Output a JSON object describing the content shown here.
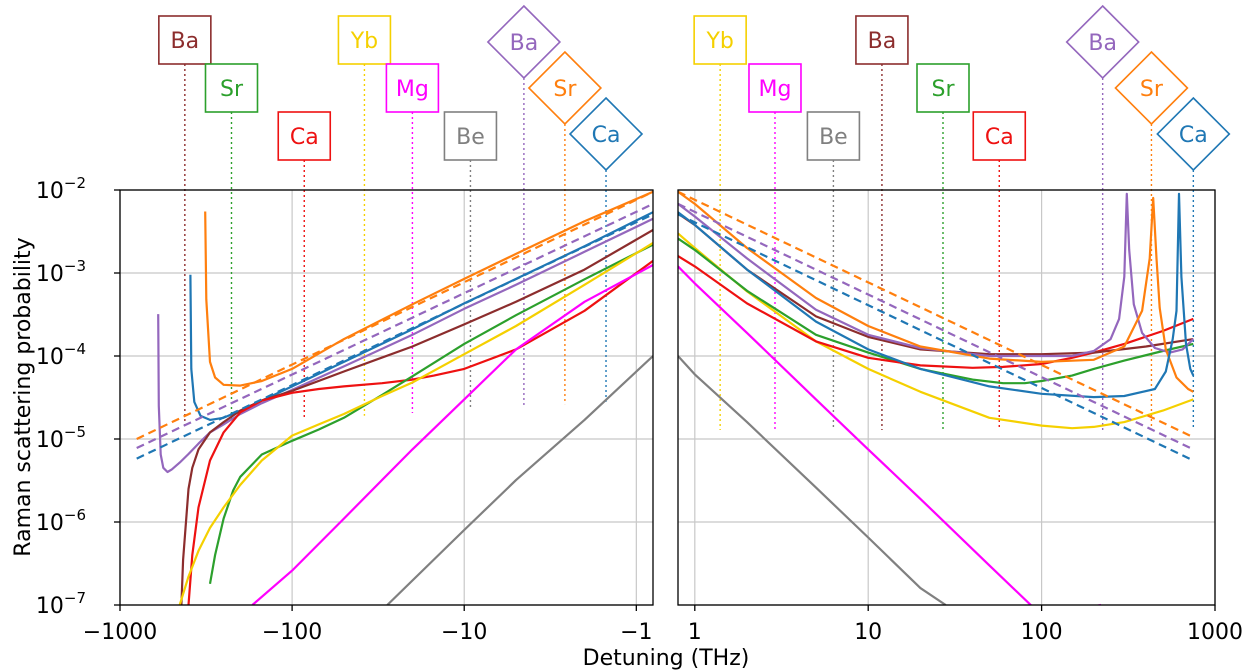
{
  "chart_data": {
    "type": "line",
    "xlabel": "Detuning (THz)",
    "ylabel": "Raman scattering probability",
    "yscale": "log",
    "ylim": [
      1e-07,
      0.01
    ],
    "y_ticks": [
      {
        "value": 0.01,
        "base": "10",
        "exp": "−2"
      },
      {
        "value": 0.001,
        "base": "10",
        "exp": "−3"
      },
      {
        "value": 0.0001,
        "base": "10",
        "exp": "−4"
      },
      {
        "value": 1e-05,
        "base": "10",
        "exp": "−5"
      },
      {
        "value": 1e-06,
        "base": "10",
        "exp": "−6"
      },
      {
        "value": 1e-07,
        "base": "10",
        "exp": "−7"
      }
    ],
    "grid": true,
    "colors": {
      "Ba": "#8c2d2d",
      "Ba_ion": "#9467bd",
      "Sr": "#2ca02c",
      "Sr_ion": "#ff7f0e",
      "Ca": "#ee1111",
      "Ca_ion": "#1f77b4",
      "Yb": "#f5d000",
      "Mg": "#ff00ff",
      "Be": "#808080"
    },
    "panels": [
      {
        "side": "left",
        "xscale": "symlog-negative",
        "xlim": [
          -1000,
          -0.8
        ],
        "x_ticks": [
          {
            "value": -1000,
            "label": "−1000"
          },
          {
            "value": -100,
            "label": "−100"
          },
          {
            "value": -10,
            "label": "−10"
          },
          {
            "value": -1,
            "label": "−1"
          }
        ],
        "markers": [
          {
            "element": "Ba",
            "x": -420,
            "shape": "square",
            "color": "#8c2d2d"
          },
          {
            "element": "Sr",
            "x": -225,
            "shape": "square",
            "color": "#2ca02c"
          },
          {
            "element": "Ca",
            "x": -85,
            "shape": "square",
            "color": "#ee1111"
          },
          {
            "element": "Yb",
            "x": -38,
            "shape": "square",
            "color": "#f5d000"
          },
          {
            "element": "Mg",
            "x": -20,
            "shape": "square",
            "color": "#ff00ff"
          },
          {
            "element": "Be",
            "x": -9.2,
            "shape": "square",
            "color": "#808080"
          },
          {
            "element": "Ba",
            "x": -4.5,
            "shape": "diamond",
            "color": "#9467bd"
          },
          {
            "element": "Sr",
            "x": -2.6,
            "shape": "diamond",
            "color": "#ff7f0e"
          },
          {
            "element": "Ca",
            "x": -1.5,
            "shape": "diamond",
            "color": "#1f77b4"
          }
        ],
        "series": [
          {
            "key": "Sr_ion",
            "style": "solid",
            "x": [
              -320,
              -315,
              -300,
              -280,
              -250,
              -200,
              -150,
              -100,
              -50,
              -20,
              -10,
              -5,
              -2,
              -0.8
            ],
            "y": [
              0.0055,
              0.00048,
              8.5e-05,
              5.5e-05,
              4.5e-05,
              4.4e-05,
              5e-05,
              7e-05,
              0.00016,
              0.00042,
              0.00085,
              0.0017,
              0.0042,
              0.0095
            ]
          },
          {
            "key": "Ca_ion",
            "style": "solid",
            "x": [
              -390,
              -385,
              -370,
              -340,
              -300,
              -250,
              -200,
              -150,
              -100,
              -50,
              -20,
              -10,
              -5,
              -2,
              -0.8
            ],
            "y": [
              0.00095,
              7e-05,
              2.8e-05,
              1.9e-05,
              1.7e-05,
              1.8e-05,
              2.2e-05,
              2.9e-05,
              4.3e-05,
              8.5e-05,
              0.00021,
              0.00043,
              0.00085,
              0.0021,
              0.0054
            ]
          },
          {
            "key": "Ba_ion",
            "style": "solid",
            "x": [
              -600,
              -595,
              -580,
              -560,
              -530,
              -500,
              -450,
              -400,
              -350,
              -300,
              -250,
              -200,
              -150,
              -100,
              -50,
              -20,
              -10,
              -5,
              -2,
              -0.8
            ],
            "y": [
              0.00032,
              2.5e-05,
              6.5e-06,
              4.5e-06,
              4e-06,
              4.3e-06,
              5.2e-06,
              6.6e-06,
              8.8e-06,
              1.2e-05,
              1.5e-05,
              2e-05,
              2.7e-05,
              3.9e-05,
              7.5e-05,
              0.00018,
              0.00037,
              0.00072,
              0.0018,
              0.0045
            ]
          },
          {
            "key": "Ba",
            "style": "solid",
            "x": [
              -440,
              -430,
              -400,
              -380,
              -350,
              -300,
              -250,
              -200,
              -150,
              -100,
              -50,
              -20,
              -10,
              -5,
              -2,
              -0.8
            ],
            "y": [
              1e-07,
              3.5e-07,
              2.5e-06,
              4.5e-06,
              7.5e-06,
              1.2e-05,
              1.6e-05,
              2.2e-05,
              2.9e-05,
              3.8e-05,
              6.5e-05,
              0.00013,
              0.00024,
              0.00045,
              0.0011,
              0.0033
            ]
          },
          {
            "key": "Ca",
            "style": "solid",
            "x": [
              -400,
              -380,
              -350,
              -300,
              -250,
              -200,
              -150,
              -100,
              -70,
              -50,
              -30,
              -20,
              -15,
              -10,
              -5,
              -2,
              -0.8
            ],
            "y": [
              1e-07,
              4e-07,
              1.5e-06,
              5.5e-06,
              1.2e-05,
              2.1e-05,
              2.9e-05,
              3.6e-05,
              4e-05,
              4.3e-05,
              4.7e-05,
              5.2e-05,
              5.8e-05,
              7e-05,
              0.00012,
              0.00035,
              0.0014
            ]
          },
          {
            "key": "Sr",
            "style": "solid",
            "x": [
              -300,
              -280,
              -250,
              -220,
              -200,
              -150,
              -100,
              -70,
              -50,
              -30,
              -20,
              -10,
              -5,
              -2,
              -0.8
            ],
            "y": [
              1.8e-07,
              4e-07,
              1.1e-06,
              2.4e-06,
              3.5e-06,
              6.5e-06,
              9.5e-06,
              1.3e-05,
              1.8e-05,
              3.4e-05,
              5.7e-05,
              0.00014,
              0.00031,
              0.00084,
              0.0022
            ]
          },
          {
            "key": "Yb",
            "style": "solid",
            "x": [
              -450,
              -400,
              -350,
              -300,
              -250,
              -200,
              -150,
              -100,
              -70,
              -50,
              -30,
              -20,
              -10,
              -5,
              -2,
              -0.8
            ],
            "y": [
              1e-07,
              2.2e-07,
              4.5e-07,
              8.5e-07,
              1.5e-06,
              2.8e-06,
              5.5e-06,
              1.1e-05,
              1.5e-05,
              2e-05,
              3.3e-05,
              4.8e-05,
              0.000105,
              0.00023,
              0.00072,
              0.0023
            ]
          },
          {
            "key": "Mg",
            "style": "solid",
            "x": [
              -170,
              -100,
              -50,
              -20,
              -10,
              -5,
              -2,
              -0.8
            ],
            "y": [
              1e-07,
              2.6e-07,
              1.1e-06,
              7.5e-06,
              3e-05,
              0.00012,
              0.00045,
              0.00125
            ]
          },
          {
            "key": "Be",
            "style": "solid",
            "x": [
              -28,
              -10,
              -5,
              -2,
              -0.8
            ],
            "y": [
              1e-07,
              8e-07,
              3.2e-06,
              1.7e-05,
              0.0001
            ]
          },
          {
            "key": "Sr_ion",
            "style": "dashed",
            "x": [
              -800,
              -0.8
            ],
            "y": [
              1e-05,
              0.0095
            ]
          },
          {
            "key": "Ba_ion",
            "style": "dashed",
            "x": [
              -800,
              -0.8
            ],
            "y": [
              7.8e-06,
              0.0068
            ]
          },
          {
            "key": "Ca_ion",
            "style": "dashed",
            "x": [
              -800,
              -0.8
            ],
            "y": [
              5.8e-06,
              0.0051
            ]
          }
        ]
      },
      {
        "side": "right",
        "xscale": "log",
        "xlim": [
          0.8,
          1000
        ],
        "x_ticks": [
          {
            "value": 1,
            "label": "1"
          },
          {
            "value": 10,
            "label": "10"
          },
          {
            "value": 100,
            "label": "100"
          },
          {
            "value": 1000,
            "label": "1000"
          }
        ],
        "markers": [
          {
            "element": "Yb",
            "x": 1.4,
            "shape": "square",
            "color": "#f5d000"
          },
          {
            "element": "Mg",
            "x": 2.9,
            "shape": "square",
            "color": "#ff00ff"
          },
          {
            "element": "Be",
            "x": 6.3,
            "shape": "square",
            "color": "#808080"
          },
          {
            "element": "Ba",
            "x": 12,
            "shape": "square",
            "color": "#8c2d2d"
          },
          {
            "element": "Sr",
            "x": 27,
            "shape": "square",
            "color": "#2ca02c"
          },
          {
            "element": "Ca",
            "x": 57,
            "shape": "square",
            "color": "#ee1111"
          },
          {
            "element": "Ba",
            "x": 225,
            "shape": "diamond",
            "color": "#9467bd"
          },
          {
            "element": "Sr",
            "x": 430,
            "shape": "diamond",
            "color": "#ff7f0e"
          },
          {
            "element": "Ca",
            "x": 750,
            "shape": "diamond",
            "color": "#1f77b4"
          }
        ],
        "series": [
          {
            "key": "Mg",
            "style": "solid",
            "x": [
              0.8,
              1,
              2,
              5,
              10,
              20,
              50,
              100,
              220
            ],
            "y": [
              0.0012,
              0.00075,
              0.00019,
              3e-05,
              7.5e-06,
              1.9e-06,
              3e-07,
              7.5e-08,
              1e-07
            ]
          },
          {
            "key": "Be",
            "style": "solid",
            "x": [
              0.8,
              1,
              2,
              5,
              10,
              20,
              28
            ],
            "y": [
              0.0001,
              6e-05,
              1.6e-05,
              2.6e-06,
              6.5e-07,
              1.6e-07,
              1e-07
            ]
          },
          {
            "key": "Yb",
            "style": "solid",
            "x": [
              0.8,
              1,
              2,
              5,
              10,
              20,
              50,
              100,
              150,
              200,
              300,
              500,
              750
            ],
            "y": [
              0.003,
              0.002,
              0.0006,
              0.00015,
              7e-05,
              3.7e-05,
              1.8e-05,
              1.45e-05,
              1.35e-05,
              1.4e-05,
              1.6e-05,
              2.2e-05,
              3e-05
            ]
          },
          {
            "key": "Sr",
            "style": "solid",
            "x": [
              0.8,
              1,
              2,
              5,
              10,
              20,
              40,
              60,
              80,
              100,
              150,
              200,
              300,
              500,
              750
            ],
            "y": [
              0.0026,
              0.0019,
              0.00061,
              0.00018,
              0.00011,
              7e-05,
              5.2e-05,
              4.7e-05,
              4.7e-05,
              5e-05,
              5.8e-05,
              7e-05,
              8.8e-05,
              0.000115,
              0.00014
            ]
          },
          {
            "key": "Ca",
            "style": "solid",
            "x": [
              0.8,
              1,
              2,
              5,
              10,
              20,
              40,
              60,
              100,
              150,
              200,
              300,
              500,
              750
            ],
            "y": [
              0.0016,
              0.0012,
              0.00043,
              0.00015,
              9.5e-05,
              7.7e-05,
              7.2e-05,
              7.4e-05,
              8e-05,
              9.5e-05,
              0.00011,
              0.00014,
              0.0002,
              0.00028
            ]
          },
          {
            "key": "Ba",
            "style": "solid",
            "x": [
              0.8,
              1,
              2,
              5,
              10,
              20,
              50,
              100,
              200,
              400,
              750
            ],
            "y": [
              0.0052,
              0.0038,
              0.0011,
              0.0003,
              0.00017,
              0.00012,
              0.000105,
              0.000105,
              0.00011,
              0.00013,
              0.00016
            ]
          },
          {
            "key": "Ba_ion",
            "style": "solid",
            "x": [
              0.8,
              1,
              2,
              5,
              10,
              20,
              50,
              100,
              150,
              200,
              250,
              280,
              300,
              310,
              320,
              340,
              380,
              450,
              550,
              650,
              750
            ],
            "y": [
              0.0068,
              0.0048,
              0.0015,
              0.00036,
              0.00018,
              0.000125,
              0.0001,
              0.0001,
              0.0001,
              0.000115,
              0.00016,
              0.00028,
              0.0009,
              0.009,
              0.0019,
              0.00042,
              0.00019,
              0.000125,
              0.00011,
              0.00012,
              0.00016
            ]
          },
          {
            "key": "Sr_ion",
            "style": "solid",
            "x": [
              0.8,
              1,
              2,
              5,
              10,
              20,
              50,
              100,
              200,
              300,
              380,
              420,
              440,
              460,
              480,
              520,
              600,
              700,
              750
            ],
            "y": [
              0.0095,
              0.0068,
              0.002,
              0.0005,
              0.00023,
              0.00013,
              9.3e-05,
              8.5e-05,
              9e-05,
              0.00013,
              0.00035,
              0.0015,
              0.008,
              0.0015,
              0.00038,
              0.00012,
              5.5e-05,
              4e-05,
              3.7e-05
            ]
          },
          {
            "key": "Ca_ion",
            "style": "solid",
            "x": [
              0.8,
              1,
              2,
              5,
              10,
              20,
              50,
              100,
              200,
              300,
              450,
              520,
              570,
              600,
              620,
              640,
              680,
              720,
              750
            ],
            "y": [
              0.0054,
              0.0038,
              0.0011,
              0.00026,
              0.00012,
              7e-05,
              4.3e-05,
              3.5e-05,
              3.2e-05,
              3.3e-05,
              4e-05,
              6.5e-05,
              0.00016,
              0.00035,
              0.009,
              0.0009,
              0.00014,
              7e-05,
              5.8e-05
            ]
          },
          {
            "key": "Sr_ion",
            "style": "dashed",
            "x": [
              0.8,
              750
            ],
            "y": [
              0.0095,
              1.05e-05
            ]
          },
          {
            "key": "Ba_ion",
            "style": "dashed",
            "x": [
              0.8,
              750
            ],
            "y": [
              0.0068,
              7.5e-06
            ]
          },
          {
            "key": "Ca_ion",
            "style": "dashed",
            "x": [
              0.8,
              750
            ],
            "y": [
              0.0051,
              5.5e-06
            ]
          }
        ]
      }
    ]
  }
}
